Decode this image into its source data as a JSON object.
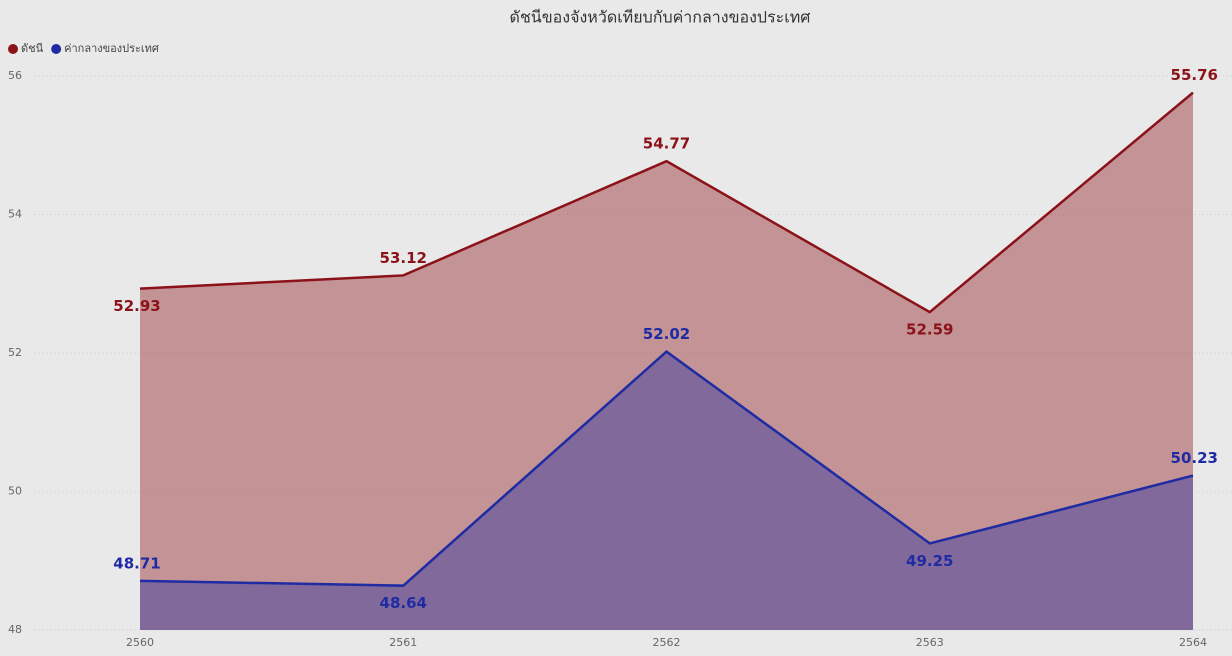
{
  "chart_data": {
    "type": "area",
    "title": "ดัชนีของจังหวัดเทียบกับค่ากลางของประเทศ",
    "categories": [
      "2560",
      "2561",
      "2562",
      "2563",
      "2564"
    ],
    "series": [
      {
        "name": "ดัชนี",
        "color": "#8b1219",
        "values": [
          52.93,
          53.12,
          54.77,
          52.59,
          55.76
        ]
      },
      {
        "name": "ค่ากลางของประเทศ",
        "color": "#1f2ba3",
        "values": [
          48.71,
          48.64,
          52.02,
          49.25,
          50.23
        ]
      }
    ],
    "ylim": [
      48,
      56
    ],
    "yticks": [
      48,
      50,
      52,
      54,
      56
    ],
    "grid": true,
    "legend": "top-left"
  }
}
